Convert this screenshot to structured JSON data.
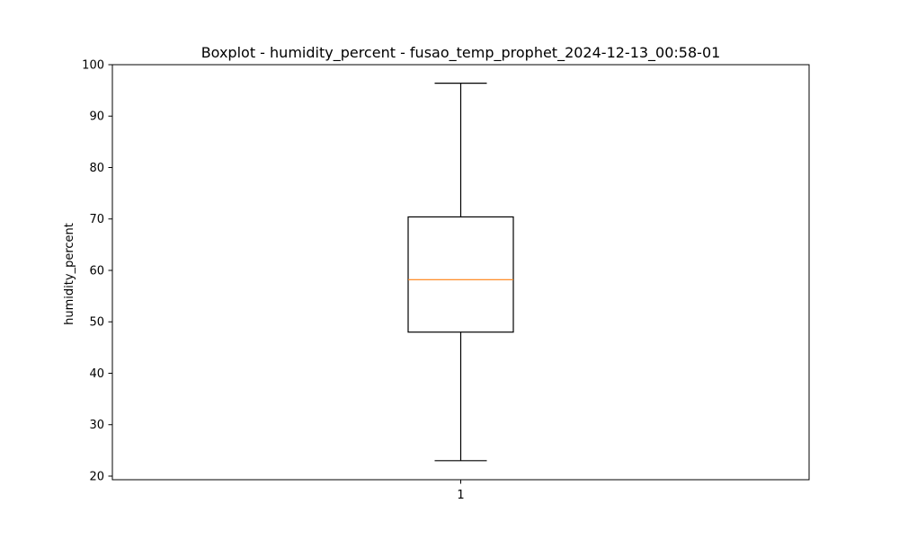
{
  "chart_data": {
    "type": "boxplot",
    "title": "Boxplot - humidity_percent - fusao_temp_prophet_2024-12-13_00:58-01",
    "xlabel": "",
    "ylabel": "humidity_percent",
    "categories": [
      "1"
    ],
    "boxes": [
      {
        "category": "1",
        "whisker_low": 23,
        "q1": 48,
        "median": 58.2,
        "q3": 70.4,
        "whisker_high": 96.4
      }
    ],
    "ylim": [
      19.3,
      100
    ],
    "yticks": [
      20,
      30,
      40,
      50,
      60,
      70,
      80,
      90,
      100
    ],
    "grid": false,
    "colors": {
      "box": "#000000",
      "median": "#ff7f0e",
      "whisker": "#000000",
      "axes": "#000000"
    }
  }
}
